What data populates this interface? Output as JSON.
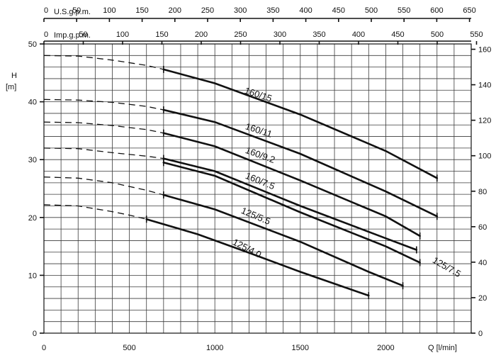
{
  "chart_data": {
    "type": "line",
    "title": "",
    "xlabel": "Q [l/min]",
    "ylabel_left": "H\n[m]",
    "xlim": [
      0,
      2500
    ],
    "ylim": [
      0,
      50
    ],
    "x_ticks": [
      0,
      500,
      1000,
      1500,
      2000
    ],
    "x_tick_labels": [
      "0",
      "500",
      "1000",
      "1500",
      "2000"
    ],
    "y_ticks": [
      0,
      10,
      20,
      30,
      40,
      50
    ],
    "y_tick_labels": [
      "0",
      "10",
      "20",
      "30",
      "40",
      "50"
    ],
    "grid": true,
    "top_axis_usgpm": {
      "label": "U.S.g.p.m.",
      "ticks": [
        "0",
        "50",
        "100",
        "150",
        "200",
        "250",
        "300",
        "350",
        "400",
        "450",
        "500",
        "550",
        "600",
        "650"
      ]
    },
    "top_axis_impgpm": {
      "label": "Imp.g.p.m.",
      "ticks": [
        "0",
        "50",
        "100",
        "150",
        "200",
        "250",
        "300",
        "350",
        "400",
        "450",
        "500",
        "550"
      ]
    },
    "right_axis": {
      "ticks": [
        "0",
        "20",
        "40",
        "60",
        "80",
        "100",
        "120",
        "140",
        "160"
      ]
    },
    "series": [
      {
        "name": "160/15",
        "label_at": [
          1170,
          41.5
        ],
        "label_rot": 18,
        "dashed": [
          [
            0,
            48
          ],
          [
            200,
            47.9
          ],
          [
            400,
            47.2
          ],
          [
            600,
            46.3
          ],
          [
            700,
            45.6
          ]
        ],
        "solid": [
          [
            700,
            45.6
          ],
          [
            1000,
            43.2
          ],
          [
            1500,
            37.8
          ],
          [
            2000,
            31.5
          ],
          [
            2300,
            26.8
          ]
        ]
      },
      {
        "name": "160/11",
        "label_at": [
          1175,
          35.3
        ],
        "label_rot": 18,
        "dashed": [
          [
            0,
            40.4
          ],
          [
            200,
            40.3
          ],
          [
            400,
            39.9
          ],
          [
            600,
            39.2
          ],
          [
            700,
            38.6
          ]
        ],
        "solid": [
          [
            700,
            38.6
          ],
          [
            1000,
            36.5
          ],
          [
            1500,
            31.0
          ],
          [
            2000,
            24.5
          ],
          [
            2300,
            20.2
          ]
        ]
      },
      {
        "name": "160/9.2",
        "label_at": [
          1175,
          31.2
        ],
        "label_rot": 20,
        "dashed": [
          [
            0,
            36.5
          ],
          [
            200,
            36.4
          ],
          [
            400,
            35.9
          ],
          [
            600,
            35.2
          ],
          [
            700,
            34.6
          ]
        ],
        "solid": [
          [
            700,
            34.6
          ],
          [
            1000,
            32.3
          ],
          [
            1500,
            26.4
          ],
          [
            2000,
            20.2
          ],
          [
            2200,
            16.8
          ]
        ]
      },
      {
        "name": "160/7.5",
        "label_at": [
          1175,
          26.8
        ],
        "label_rot": 22,
        "dashed": [
          [
            0,
            32.0
          ],
          [
            200,
            31.9
          ],
          [
            400,
            31.2
          ],
          [
            600,
            30.6
          ],
          [
            700,
            30.2
          ]
        ],
        "solid": [
          [
            700,
            30.2
          ],
          [
            1000,
            28.0
          ],
          [
            1500,
            22.0
          ],
          [
            2000,
            16.4
          ],
          [
            2180,
            14.4
          ]
        ]
      },
      {
        "name": "125/7.5",
        "label_at": [
          2270,
          12.3
        ],
        "label_rot": 30,
        "dashed": [],
        "solid": [
          [
            700,
            29.5
          ],
          [
            1000,
            27.2
          ],
          [
            1500,
            20.9
          ],
          [
            2000,
            15.0
          ],
          [
            2200,
            12.2
          ]
        ]
      },
      {
        "name": "125/5.5",
        "label_at": [
          1150,
          20.8
        ],
        "label_rot": 23,
        "dashed": [
          [
            0,
            27.0
          ],
          [
            200,
            26.8
          ],
          [
            400,
            26.0
          ],
          [
            600,
            24.7
          ],
          [
            700,
            23.9
          ]
        ],
        "solid": [
          [
            700,
            23.9
          ],
          [
            1000,
            21.4
          ],
          [
            1500,
            15.8
          ],
          [
            1900,
            10.6
          ],
          [
            2100,
            8.2
          ]
        ]
      },
      {
        "name": "125/4.0",
        "label_at": [
          1100,
          15.4
        ],
        "label_rot": 27,
        "dashed": [
          [
            0,
            22.2
          ],
          [
            200,
            22.0
          ],
          [
            400,
            21.0
          ],
          [
            500,
            20.4
          ],
          [
            600,
            19.7
          ]
        ],
        "solid": [
          [
            600,
            19.7
          ],
          [
            900,
            17.1
          ],
          [
            1200,
            13.9
          ],
          [
            1500,
            10.6
          ],
          [
            1900,
            6.5
          ]
        ]
      }
    ]
  }
}
